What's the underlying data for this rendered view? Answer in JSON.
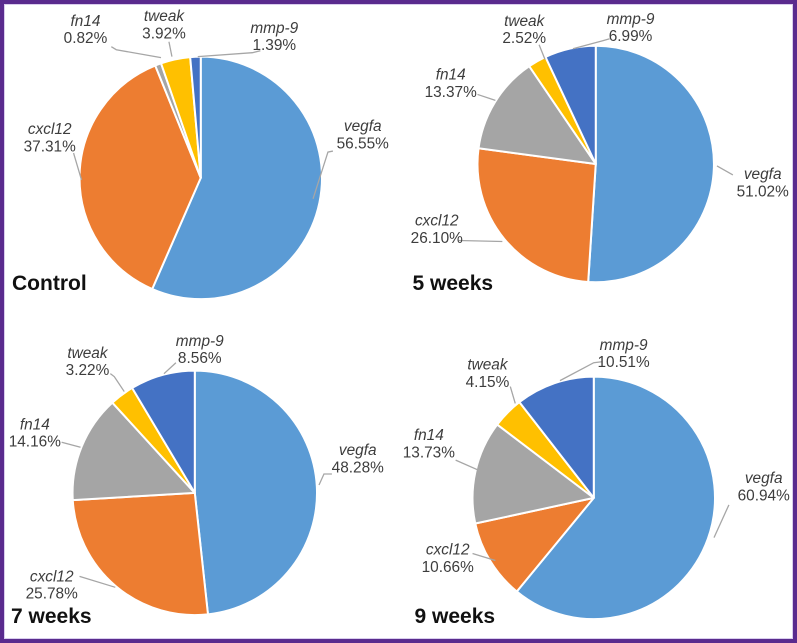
{
  "figure": {
    "description": "Four pie charts of relative gene expression at different time points",
    "panels": [
      "Control",
      "5 weeks",
      "7 weeks",
      "9 weeks"
    ]
  },
  "palette": {
    "vegfa": "#5B9BD5",
    "cxcl12": "#ED7D31",
    "fn14": "#A5A5A5",
    "tweak": "#FFC000",
    "mmp-9": "#4472C4"
  },
  "colors": {
    "frame_border": "#5A2B8E",
    "frame_inner_line": "#D9CDED",
    "leader_line": "#A6A6A6",
    "label_text": "#3D3D3D",
    "title_text": "#111111",
    "slice_gap": "#FFFFFF",
    "background": "#FFFFFF"
  },
  "chart_data": [
    {
      "type": "pie",
      "title": "Control",
      "categories": [
        "vegfa",
        "cxcl12",
        "fn14",
        "tweak",
        "mmp-9"
      ],
      "values": [
        56.55,
        37.31,
        0.82,
        3.92,
        1.39
      ],
      "labels": [
        "56.55%",
        "37.31%",
        "0.82%",
        "3.92%",
        "1.39%"
      ],
      "start_angle_deg": 0,
      "direction": "clockwise",
      "legend_position": "none"
    },
    {
      "type": "pie",
      "title": "5 weeks",
      "categories": [
        "vegfa",
        "cxcl12",
        "fn14",
        "tweak",
        "mmp-9"
      ],
      "values": [
        51.02,
        26.1,
        13.37,
        2.52,
        6.99
      ],
      "labels": [
        "51.02%",
        "26.10%",
        "13.37%",
        "2.52%",
        "6.99%"
      ],
      "start_angle_deg": 0,
      "direction": "clockwise",
      "legend_position": "none"
    },
    {
      "type": "pie",
      "title": "7 weeks",
      "categories": [
        "vegfa",
        "cxcl12",
        "fn14",
        "tweak",
        "mmp-9"
      ],
      "values": [
        48.28,
        25.78,
        14.16,
        3.22,
        8.56
      ],
      "labels": [
        "48.28%",
        "25.78%",
        "14.16%",
        "3.22%",
        "8.56%"
      ],
      "start_angle_deg": 0,
      "direction": "clockwise",
      "legend_position": "none"
    },
    {
      "type": "pie",
      "title": "9 weeks",
      "categories": [
        "vegfa",
        "cxcl12",
        "fn14",
        "tweak",
        "mmp-9"
      ],
      "values": [
        60.94,
        10.66,
        13.73,
        4.15,
        10.51
      ],
      "labels": [
        "60.94%",
        "10.66%",
        "13.73%",
        "4.15%",
        "10.51%"
      ],
      "start_angle_deg": 0,
      "direction": "clockwise",
      "legend_position": "none"
    }
  ]
}
